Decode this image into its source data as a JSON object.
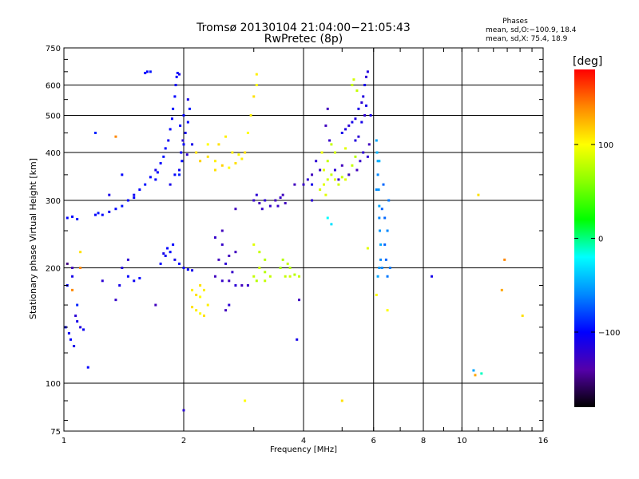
{
  "header": {
    "title_line1": "Tromsø 20130104 21:04:00−21:05:43",
    "title_line2": "RwPretec (8p)"
  },
  "phases_box": {
    "title": "Phases",
    "o_mode": "mean, sd,O:−100.9, 18.4",
    "x_mode": "mean, sd,X:  75.4, 18.9"
  },
  "colorbar": {
    "unit_label": "[deg]",
    "ticks": [
      "100",
      "0",
      "−100"
    ],
    "tick_values": [
      100,
      0,
      -100
    ],
    "range": [
      -180,
      180
    ],
    "stops": [
      {
        "v": -180,
        "color": "#000000"
      },
      {
        "v": -140,
        "color": "#5500aa"
      },
      {
        "v": -100,
        "color": "#0000ff"
      },
      {
        "v": -60,
        "color": "#0088ff"
      },
      {
        "v": -20,
        "color": "#00ffff"
      },
      {
        "v": 20,
        "color": "#00ff00"
      },
      {
        "v": 60,
        "color": "#88ff00"
      },
      {
        "v": 100,
        "color": "#ffff00"
      },
      {
        "v": 140,
        "color": "#ff8800"
      },
      {
        "v": 180,
        "color": "#ff0000"
      }
    ]
  },
  "chart_data": {
    "type": "scatter",
    "title": "Tromsø 20130104 21:04:00−21:05:43",
    "subtitle": "RwPretec (8p)",
    "xlabel": "Frequency [MHz]",
    "ylabel": "Stationary phase Virtual Height [km]",
    "x_scale": "log",
    "y_scale": "log",
    "xlim": [
      1,
      16
    ],
    "ylim": [
      75,
      750
    ],
    "x_ticks": [
      1,
      2,
      4,
      6,
      8,
      10,
      16
    ],
    "x_tick_labels": [
      "1",
      "2",
      "4",
      "6",
      "8",
      "10",
      "16"
    ],
    "y_ticks": [
      75,
      100,
      200,
      300,
      400,
      500,
      600,
      750
    ],
    "y_tick_labels": [
      "75",
      "100",
      "200",
      "300",
      "400",
      "500",
      "600",
      "750"
    ],
    "grid": true,
    "color_by": "phase [deg]",
    "points": [
      [
        1.02,
        270,
        -100
      ],
      [
        1.05,
        272,
        -100
      ],
      [
        1.08,
        268,
        -95
      ],
      [
        1.25,
        275,
        -100
      ],
      [
        1.3,
        280,
        -105
      ],
      [
        1.35,
        285,
        -100
      ],
      [
        1.4,
        290,
        -95
      ],
      [
        1.45,
        300,
        -100
      ],
      [
        1.5,
        310,
        -105
      ],
      [
        1.55,
        320,
        -100
      ],
      [
        1.6,
        330,
        -95
      ],
      [
        1.65,
        345,
        -100
      ],
      [
        1.7,
        360,
        -110
      ],
      [
        1.75,
        375,
        -100
      ],
      [
        1.78,
        390,
        -95
      ],
      [
        1.8,
        410,
        -100
      ],
      [
        1.83,
        430,
        -105
      ],
      [
        1.85,
        460,
        -100
      ],
      [
        1.87,
        490,
        -100
      ],
      [
        1.88,
        520,
        -95
      ],
      [
        1.9,
        560,
        -100
      ],
      [
        1.91,
        600,
        -105
      ],
      [
        1.92,
        630,
        -100
      ],
      [
        1.93,
        645,
        -100
      ],
      [
        1.95,
        640,
        -110
      ],
      [
        1.6,
        645,
        -100
      ],
      [
        1.62,
        650,
        -100
      ],
      [
        1.65,
        650,
        -95
      ],
      [
        1.97,
        400,
        -105
      ],
      [
        2.0,
        420,
        -100
      ],
      [
        2.02,
        450,
        -110
      ],
      [
        2.05,
        480,
        -100
      ],
      [
        2.07,
        520,
        -95
      ],
      [
        1.98,
        380,
        -100
      ],
      [
        1.95,
        360,
        -105
      ],
      [
        1.9,
        350,
        -100
      ],
      [
        1.85,
        330,
        -110
      ],
      [
        1.7,
        340,
        -100
      ],
      [
        1.72,
        355,
        -100
      ],
      [
        1.5,
        305,
        -100
      ],
      [
        1.2,
        275,
        -100
      ],
      [
        1.22,
        278,
        -95
      ],
      [
        1.95,
        350,
        -90
      ],
      [
        2.04,
        395,
        -120
      ],
      [
        2.1,
        420,
        -110
      ],
      [
        2.0,
        500,
        -100
      ],
      [
        2.05,
        550,
        -110
      ],
      [
        1.96,
        470,
        -100
      ],
      [
        1.99,
        430,
        -120
      ],
      [
        1.75,
        205,
        -100
      ],
      [
        1.8,
        215,
        -105
      ],
      [
        1.85,
        220,
        -100
      ],
      [
        1.9,
        210,
        -110
      ],
      [
        1.95,
        205,
        -100
      ],
      [
        2.0,
        200,
        -105
      ],
      [
        2.05,
        198,
        -100
      ],
      [
        2.1,
        197,
        -110
      ],
      [
        1.82,
        225,
        -100
      ],
      [
        1.88,
        230,
        -100
      ],
      [
        1.78,
        218,
        -110
      ],
      [
        1.45,
        190,
        -100
      ],
      [
        1.5,
        185,
        -105
      ],
      [
        1.55,
        188,
        -100
      ],
      [
        2.4,
        190,
        -130
      ],
      [
        2.5,
        185,
        -125
      ],
      [
        2.6,
        185,
        -130
      ],
      [
        2.7,
        180,
        -120
      ],
      [
        2.8,
        180,
        -130
      ],
      [
        2.9,
        180,
        -125
      ],
      [
        2.45,
        210,
        -130
      ],
      [
        2.5,
        230,
        -125
      ],
      [
        2.55,
        205,
        -120
      ],
      [
        2.6,
        215,
        -130
      ],
      [
        2.65,
        195,
        -125
      ],
      [
        2.7,
        220,
        -130
      ],
      [
        2.4,
        240,
        -125
      ],
      [
        2.5,
        250,
        -130
      ],
      [
        3.0,
        300,
        -125
      ],
      [
        3.1,
        295,
        -130
      ],
      [
        3.2,
        300,
        -120
      ],
      [
        3.3,
        290,
        -125
      ],
      [
        3.4,
        300,
        -130
      ],
      [
        3.5,
        305,
        -125
      ],
      [
        3.6,
        295,
        -130
      ],
      [
        3.05,
        310,
        -120
      ],
      [
        3.45,
        290,
        -125
      ],
      [
        3.55,
        310,
        -130
      ],
      [
        2.7,
        285,
        -130
      ],
      [
        3.15,
        285,
        -125
      ],
      [
        2.3,
        390,
        110
      ],
      [
        2.4,
        380,
        105
      ],
      [
        2.5,
        370,
        115
      ],
      [
        2.6,
        365,
        100
      ],
      [
        2.7,
        375,
        110
      ],
      [
        2.8,
        385,
        105
      ],
      [
        2.85,
        400,
        110
      ],
      [
        2.9,
        450,
        100
      ],
      [
        2.95,
        500,
        105
      ],
      [
        3.0,
        560,
        110
      ],
      [
        3.05,
        600,
        100
      ],
      [
        3.05,
        640,
        105
      ],
      [
        2.45,
        420,
        110
      ],
      [
        2.55,
        440,
        105
      ],
      [
        2.4,
        360,
        110
      ],
      [
        2.3,
        420,
        100
      ],
      [
        2.65,
        400,
        105
      ],
      [
        2.2,
        380,
        115
      ],
      [
        2.15,
        400,
        110
      ],
      [
        2.75,
        395,
        100
      ],
      [
        2.1,
        175,
        105
      ],
      [
        2.15,
        170,
        110
      ],
      [
        2.2,
        168,
        100
      ],
      [
        2.25,
        175,
        105
      ],
      [
        2.2,
        180,
        110
      ],
      [
        3.0,
        190,
        80
      ],
      [
        3.1,
        200,
        85
      ],
      [
        3.2,
        210,
        75
      ],
      [
        3.1,
        220,
        80
      ],
      [
        3.0,
        230,
        90
      ],
      [
        3.2,
        195,
        75
      ],
      [
        3.3,
        190,
        80
      ],
      [
        3.6,
        190,
        80
      ],
      [
        3.7,
        190,
        85
      ],
      [
        3.8,
        192,
        75
      ],
      [
        3.9,
        190,
        80
      ],
      [
        3.5,
        200,
        70
      ],
      [
        3.55,
        210,
        75
      ],
      [
        3.65,
        205,
        80
      ],
      [
        3.05,
        185,
        75
      ],
      [
        3.2,
        185,
        80
      ],
      [
        3.7,
        200,
        75
      ],
      [
        4.5,
        330,
        90
      ],
      [
        4.6,
        340,
        85
      ],
      [
        4.7,
        350,
        80
      ],
      [
        4.8,
        340,
        90
      ],
      [
        4.9,
        330,
        85
      ],
      [
        5.0,
        345,
        80
      ],
      [
        5.1,
        340,
        90
      ],
      [
        5.2,
        350,
        85
      ],
      [
        5.3,
        370,
        80
      ],
      [
        5.4,
        390,
        75
      ],
      [
        4.4,
        320,
        85
      ],
      [
        4.5,
        360,
        90
      ],
      [
        4.6,
        380,
        80
      ],
      [
        4.8,
        400,
        85
      ],
      [
        4.7,
        420,
        80
      ],
      [
        5.1,
        410,
        90
      ],
      [
        5.3,
        600,
        80
      ],
      [
        5.35,
        620,
        85
      ],
      [
        5.45,
        580,
        80
      ],
      [
        4.45,
        400,
        95
      ],
      [
        4.55,
        310,
        90
      ],
      [
        5.0,
        450,
        -110
      ],
      [
        5.1,
        460,
        -115
      ],
      [
        5.2,
        470,
        -120
      ],
      [
        5.3,
        480,
        -110
      ],
      [
        5.4,
        490,
        -115
      ],
      [
        5.5,
        520,
        -110
      ],
      [
        5.6,
        540,
        -120
      ],
      [
        5.65,
        560,
        -115
      ],
      [
        5.7,
        600,
        -110
      ],
      [
        5.75,
        630,
        -120
      ],
      [
        5.8,
        650,
        -115
      ],
      [
        5.6,
        480,
        -110
      ],
      [
        5.7,
        500,
        -120
      ],
      [
        5.75,
        530,
        -110
      ],
      [
        5.5,
        440,
        -120
      ],
      [
        5.4,
        430,
        -115
      ],
      [
        5.9,
        500,
        -110
      ],
      [
        5.85,
        420,
        -130
      ],
      [
        5.8,
        390,
        -120
      ],
      [
        4.8,
        360,
        -120
      ],
      [
        4.9,
        340,
        -125
      ],
      [
        5.0,
        370,
        -130
      ],
      [
        5.2,
        350,
        -125
      ],
      [
        5.45,
        360,
        -130
      ],
      [
        5.55,
        380,
        -125
      ],
      [
        5.65,
        400,
        -120
      ],
      [
        4.3,
        380,
        -120
      ],
      [
        4.4,
        360,
        -125
      ],
      [
        4.2,
        350,
        -130
      ],
      [
        4.1,
        340,
        -120
      ],
      [
        4.0,
        330,
        -125
      ],
      [
        3.8,
        330,
        -130
      ],
      [
        4.2,
        300,
        -120
      ],
      [
        4.55,
        470,
        -130
      ],
      [
        4.65,
        430,
        -125
      ],
      [
        4.6,
        520,
        -130
      ],
      [
        6.1,
        430,
        -50
      ],
      [
        6.12,
        400,
        -45
      ],
      [
        6.15,
        380,
        -50
      ],
      [
        6.15,
        350,
        -60
      ],
      [
        6.18,
        320,
        -55
      ],
      [
        6.2,
        290,
        -50
      ],
      [
        6.2,
        270,
        -60
      ],
      [
        6.22,
        250,
        -55
      ],
      [
        6.25,
        230,
        -50
      ],
      [
        6.25,
        210,
        -60
      ],
      [
        6.2,
        200,
        -55
      ],
      [
        6.15,
        190,
        -50
      ],
      [
        6.1,
        320,
        -60
      ],
      [
        6.2,
        380,
        -45
      ],
      [
        6.3,
        285,
        -70
      ],
      [
        6.4,
        230,
        -70
      ],
      [
        6.5,
        190,
        -65
      ],
      [
        6.3,
        200,
        -60
      ],
      [
        6.45,
        210,
        -70
      ],
      [
        6.6,
        200,
        -65
      ],
      [
        6.4,
        270,
        -70
      ],
      [
        6.5,
        250,
        -60
      ],
      [
        6.55,
        300,
        -65
      ],
      [
        6.35,
        330,
        -70
      ],
      [
        1.02,
        180,
        -100
      ],
      [
        1.05,
        190,
        -110
      ],
      [
        1.07,
        150,
        -120
      ],
      [
        1.04,
        130,
        -100
      ],
      [
        1.06,
        125,
        -110
      ],
      [
        1.03,
        135,
        -105
      ],
      [
        1.01,
        140,
        -100
      ],
      [
        1.08,
        145,
        -110
      ],
      [
        1.1,
        140,
        -115
      ],
      [
        1.12,
        138,
        -105
      ],
      [
        1.05,
        200,
        -130
      ],
      [
        1.15,
        110,
        -100
      ],
      [
        1.25,
        185,
        -120
      ],
      [
        1.38,
        180,
        -110
      ],
      [
        1.35,
        165,
        -125
      ],
      [
        1.4,
        200,
        -115
      ],
      [
        1.45,
        210,
        -120
      ],
      [
        1.35,
        440,
        140
      ],
      [
        1.2,
        450,
        -90
      ],
      [
        1.4,
        350,
        -100
      ],
      [
        1.3,
        310,
        -110
      ],
      [
        1.1,
        220,
        110
      ],
      [
        1.05,
        175,
        140
      ],
      [
        1.1,
        200,
        140
      ],
      [
        1.08,
        160,
        -90
      ],
      [
        1.02,
        205,
        -150
      ],
      [
        2.0,
        85,
        -120
      ],
      [
        2.85,
        90,
        100
      ],
      [
        5.0,
        90,
        110
      ],
      [
        5.8,
        225,
        90
      ],
      [
        6.1,
        170,
        100
      ],
      [
        6.5,
        155,
        100
      ],
      [
        4.6,
        270,
        -20
      ],
      [
        4.7,
        260,
        -30
      ],
      [
        3.9,
        165,
        -130
      ],
      [
        3.85,
        130,
        -110
      ],
      [
        4.2,
        330,
        -110
      ],
      [
        8.4,
        190,
        -110
      ],
      [
        10.8,
        105,
        130
      ],
      [
        11.2,
        106,
        -10
      ],
      [
        10.7,
        108,
        -50
      ],
      [
        11.0,
        310,
        110
      ],
      [
        12.8,
        210,
        140
      ],
      [
        12.6,
        175,
        130
      ],
      [
        14.2,
        150,
        110
      ],
      [
        2.3,
        160,
        105
      ],
      [
        2.25,
        150,
        110
      ],
      [
        2.2,
        152,
        100
      ],
      [
        2.15,
        155,
        105
      ],
      [
        2.1,
        158,
        110
      ],
      [
        1.7,
        160,
        -130
      ],
      [
        2.55,
        155,
        -130
      ],
      [
        2.6,
        160,
        -120
      ]
    ]
  }
}
